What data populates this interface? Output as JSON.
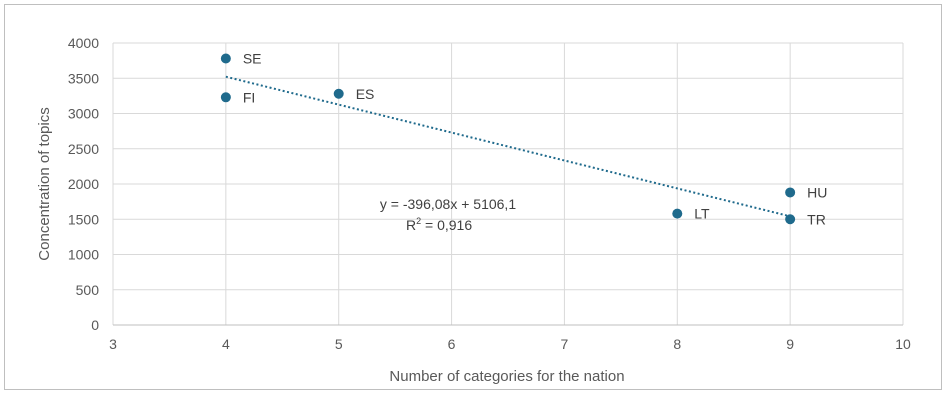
{
  "chart_data": {
    "type": "scatter",
    "title": "",
    "xlabel": "Number of categories for the nation",
    "ylabel": "Concentration of topics",
    "xlim": [
      3,
      10
    ],
    "ylim": [
      0,
      4000
    ],
    "x_ticks": [
      3,
      4,
      5,
      6,
      7,
      8,
      9,
      10
    ],
    "y_ticks": [
      0,
      500,
      1000,
      1500,
      2000,
      2500,
      3000,
      3500,
      4000
    ],
    "grid": true,
    "legend": "none",
    "marker_color": "#1f6a8c",
    "trendline_color": "#1f6a8c",
    "points": [
      {
        "label": "SE",
        "x": 4,
        "y": 3780
      },
      {
        "label": "FI",
        "x": 4,
        "y": 3230
      },
      {
        "label": "ES",
        "x": 5,
        "y": 3280
      },
      {
        "label": "LT",
        "x": 8,
        "y": 1580
      },
      {
        "label": "HU",
        "x": 9,
        "y": 1880
      },
      {
        "label": "TR",
        "x": 9,
        "y": 1500
      }
    ],
    "trendline": {
      "type": "linear",
      "slope": -396.08,
      "intercept": 5106.1,
      "x_range": [
        4,
        9
      ],
      "equation": "y = -396,08x + 5106,1",
      "r2_prefix": "R",
      "r2_sup": "2",
      "r2_value": " = 0,916"
    }
  }
}
